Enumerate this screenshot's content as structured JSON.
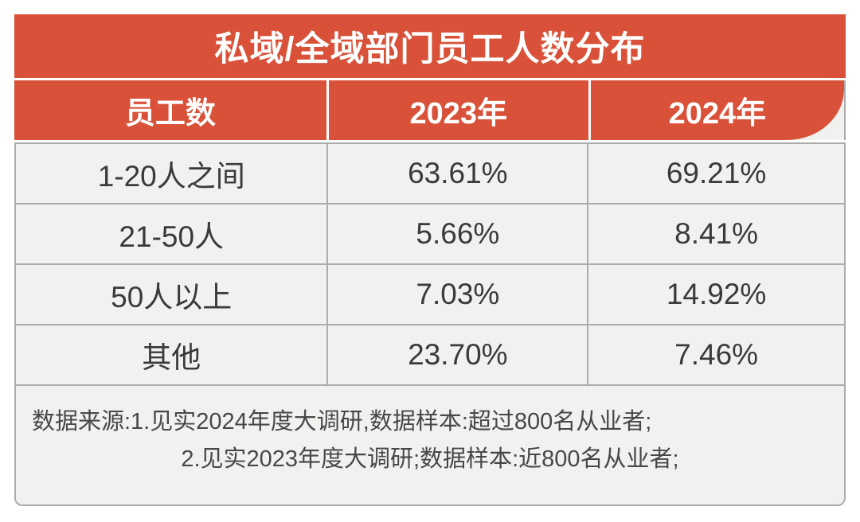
{
  "table": {
    "title": "私域/全域部门员工人数分布",
    "columns": [
      "员工数",
      "2023年",
      "2024年"
    ],
    "rows": [
      {
        "label": "1-20人之间",
        "y2023": "63.61%",
        "y2024": "69.21%"
      },
      {
        "label": "21-50人",
        "y2023": "5.66%",
        "y2024": "8.41%"
      },
      {
        "label": "50人以上",
        "y2023": "7.03%",
        "y2024": "14.92%"
      },
      {
        "label": "其他",
        "y2023": "23.70%",
        "y2024": "7.46%"
      }
    ],
    "footnote_line1": "数据来源:1.见实2024年度大调研,数据样本:超过800名从业者;",
    "footnote_line2": "2.见实2023年度大调研;数据样本:近800名从业者;"
  },
  "chart_data": {
    "type": "table",
    "title": "私域/全域部门员工人数分布",
    "categories": [
      "1-20人之间",
      "21-50人",
      "50人以上",
      "其他"
    ],
    "series": [
      {
        "name": "2023年",
        "values": [
          63.61,
          5.66,
          7.03,
          23.7
        ]
      },
      {
        "name": "2024年",
        "values": [
          69.21,
          8.41,
          14.92,
          7.46
        ]
      }
    ],
    "unit": "%",
    "source_notes": [
      "数据来源:1.见实2024年度大调研,数据样本:超过800名从业者;",
      "2.见实2023年度大调研;数据样本:近800名从业者;"
    ]
  },
  "colors": {
    "accent": "#D85138",
    "cell_bg": "#F1F1EF",
    "border": "#ACACAC",
    "header_text": "#FFFFFF",
    "body_text": "#3A3A3A",
    "footnote_text": "#474747"
  }
}
